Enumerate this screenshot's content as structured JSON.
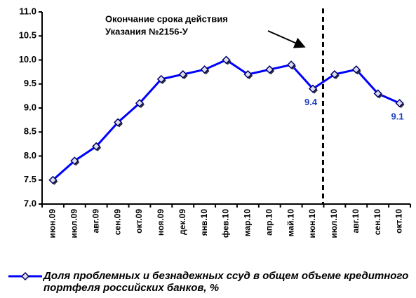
{
  "chart_data": {
    "type": "line",
    "categories": [
      "июн.09",
      "июл.09",
      "авг.09",
      "сен.09",
      "окт.09",
      "ноя.09",
      "дек.09",
      "янв.10",
      "фев.10",
      "мар.10",
      "апр.10",
      "май.10",
      "июн.10",
      "июл.10",
      "авг.10",
      "сен.10",
      "окт.10"
    ],
    "series": [
      {
        "name": "Доля проблемных и безнадежных ссуд в общем объеме кредитного портфеля российских банков, %",
        "color": "#0000ff",
        "values": [
          7.5,
          7.9,
          8.2,
          8.7,
          9.1,
          9.6,
          9.7,
          9.8,
          10.0,
          9.7,
          9.8,
          9.9,
          9.4,
          9.7,
          9.8,
          9.3,
          9.1
        ],
        "value_labels": [
          null,
          null,
          null,
          null,
          null,
          null,
          null,
          null,
          null,
          null,
          null,
          null,
          "9.4",
          null,
          null,
          null,
          "9.1"
        ]
      }
    ],
    "ylim": [
      7.0,
      11.0
    ],
    "yticks": [
      {
        "value": 7,
        "label": "7.0"
      },
      7.5,
      {
        "value": 8,
        "label": "8.0"
      },
      8.5,
      {
        "value": 9,
        "label": "9.0"
      },
      9.5,
      {
        "value": 10,
        "label": "10.0"
      },
      10.5,
      {
        "value": 11,
        "label": "11.0"
      }
    ],
    "annotation": [
      "Окончание срока действия",
      "Указания №2156-У"
    ],
    "grid": false,
    "legend": "bottom"
  }
}
